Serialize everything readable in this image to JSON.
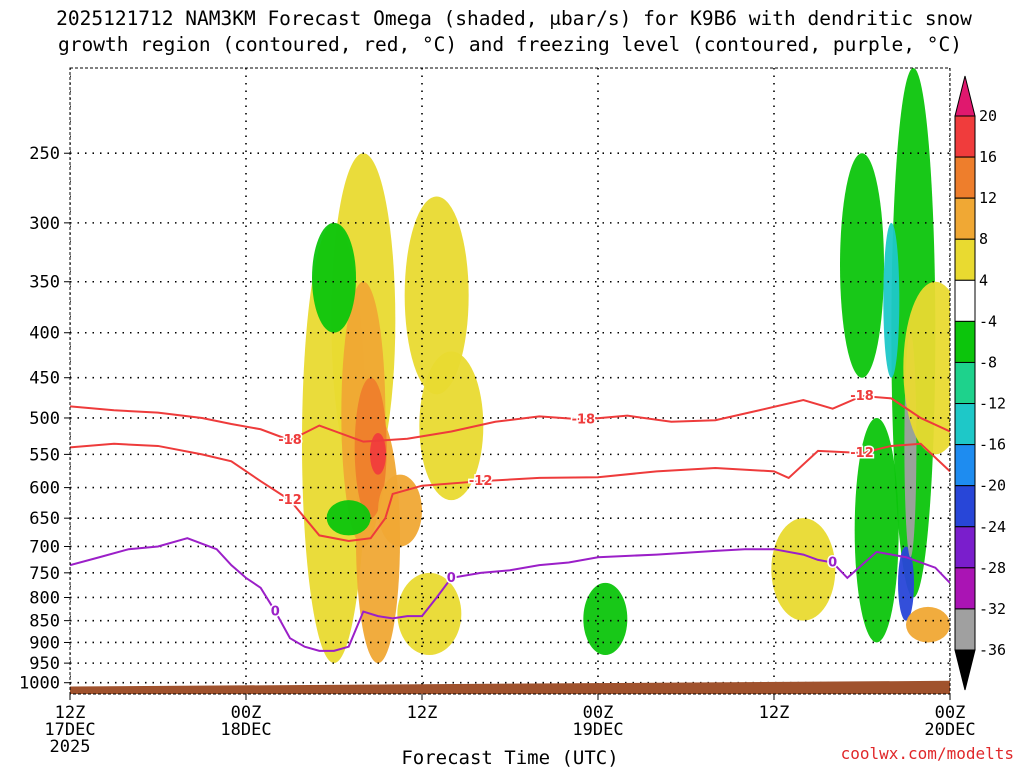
{
  "chart_data": {
    "type": "heatmap",
    "title": "2025121712 NAM3KM Forecast Omega (shaded, μbar/s) for K9B6 with dendritic snow growth region (contoured, red, °C) and freezing level (contoured, purple, °C)",
    "title_lines": [
      "2025121712 NAM3KM Forecast Omega (shaded, μbar/s) for K9B6 with dendritic snow",
      "growth region (contoured, red, °C) and freezing level (contoured, purple, °C)"
    ],
    "xlabel": "Forecast Time (UTC)",
    "ylabel": "",
    "y_scale": "log-pressure",
    "ylim": [
      1030,
      200
    ],
    "xlim_hours": [
      0,
      60
    ],
    "y_ticks": [
      250,
      300,
      350,
      400,
      450,
      500,
      550,
      600,
      650,
      700,
      750,
      800,
      850,
      900,
      950,
      1000
    ],
    "x_ticks": [
      {
        "h": 0,
        "lines": [
          "12Z",
          "17DEC",
          "2025"
        ]
      },
      {
        "h": 12,
        "lines": [
          "00Z",
          "18DEC"
        ]
      },
      {
        "h": 24,
        "lines": [
          "12Z"
        ]
      },
      {
        "h": 36,
        "lines": [
          "00Z",
          "19DEC"
        ]
      },
      {
        "h": 48,
        "lines": [
          "12Z"
        ]
      },
      {
        "h": 60,
        "lines": [
          "00Z",
          "20DEC"
        ]
      }
    ],
    "colorbar": {
      "labels": [
        "20",
        "16",
        "12",
        "8",
        "4",
        "-4",
        "-8",
        "-12",
        "-16",
        "-20",
        "-24",
        "-28",
        "-32",
        "-36"
      ],
      "bins": [
        {
          "range": [
            16,
            20
          ],
          "color": "#f03c3c"
        },
        {
          "range": [
            12,
            16
          ],
          "color": "#ee7e2c"
        },
        {
          "range": [
            8,
            12
          ],
          "color": "#f0a834"
        },
        {
          "range": [
            4,
            8
          ],
          "color": "#e9da30"
        },
        {
          "range": [
            -4,
            4
          ],
          "color": "#ffffff"
        },
        {
          "range": [
            -8,
            -4
          ],
          "color": "#0cc50c"
        },
        {
          "range": [
            -12,
            -8
          ],
          "color": "#1ed28c"
        },
        {
          "range": [
            -16,
            -12
          ],
          "color": "#1ec8c8"
        },
        {
          "range": [
            -20,
            -16
          ],
          "color": "#1e8cf0"
        },
        {
          "range": [
            -24,
            -20
          ],
          "color": "#2846d8"
        },
        {
          "range": [
            -28,
            -24
          ],
          "color": "#7a1ecc"
        },
        {
          "range": [
            -32,
            -28
          ],
          "color": "#aa14b4"
        },
        {
          "range": [
            -36,
            -32
          ],
          "color": "#a0a0a0"
        }
      ],
      "overflow_high_color": "#e0186e",
      "overflow_low_color": "#000000"
    },
    "omega_regions": [
      {
        "h": 20,
        "p": [
          250,
          600
        ],
        "value": 4
      },
      {
        "h": 18,
        "p": [
          300,
          950
        ],
        "value": 4
      },
      {
        "h": 20,
        "p": [
          350,
          700
        ],
        "value": 8
      },
      {
        "h": 21,
        "p": [
          500,
          950
        ],
        "value": 8
      },
      {
        "h": 20.5,
        "p": [
          450,
          650
        ],
        "value": 12
      },
      {
        "h": 21,
        "p": [
          520,
          580
        ],
        "value": 16
      },
      {
        "h": 26,
        "p": [
          420,
          620
        ],
        "value": 4
      },
      {
        "h": 25,
        "p": [
          280,
          470
        ],
        "value": 4
      },
      {
        "h": 24.5,
        "p": [
          750,
          930
        ],
        "value": 4
      },
      {
        "h": 22.5,
        "p": [
          580,
          700
        ],
        "value": 8
      },
      {
        "h": 18,
        "p": [
          300,
          400
        ],
        "value": -8
      },
      {
        "h": 19,
        "p": [
          620,
          680
        ],
        "value": -8
      },
      {
        "h": 54,
        "p": [
          250,
          450
        ],
        "value": -8
      },
      {
        "h": 55,
        "p": [
          500,
          900
        ],
        "value": -8
      },
      {
        "h": 57.5,
        "p": [
          200,
          800
        ],
        "value": -8
      },
      {
        "h": 56,
        "p": [
          300,
          450
        ],
        "value": -16
      },
      {
        "h": 57,
        "p": [
          700,
          850
        ],
        "value": -24
      },
      {
        "h": 57.3,
        "p": [
          400,
          720
        ],
        "value": -36
      },
      {
        "h": 59,
        "p": [
          350,
          550
        ],
        "value": 4
      },
      {
        "h": 58.5,
        "p": [
          820,
          900
        ],
        "value": 8
      },
      {
        "h": 36.5,
        "p": [
          770,
          930
        ],
        "value": -8
      },
      {
        "h": 50,
        "p": [
          650,
          850
        ],
        "value": 4
      }
    ],
    "series": [
      {
        "name": "dendritic growth -18°C",
        "color": "#ee3b3b",
        "label": "-18",
        "x": [
          0,
          3,
          6,
          9,
          11,
          13,
          15,
          17,
          20,
          23,
          26,
          29,
          32,
          35,
          38,
          41,
          44,
          47,
          50,
          52,
          54,
          56,
          58,
          60
        ],
        "y": [
          485,
          490,
          493,
          500,
          508,
          515,
          530,
          510,
          532,
          528,
          518,
          505,
          498,
          502,
          497,
          505,
          503,
          490,
          477,
          488,
          472,
          475,
          500,
          518
        ]
      },
      {
        "name": "dendritic growth -12°C",
        "color": "#ee3b3b",
        "label": "-12",
        "x": [
          0,
          3,
          6,
          9,
          11,
          13,
          15,
          17,
          19,
          20.5,
          21.5,
          22,
          24,
          28,
          32,
          36,
          40,
          44,
          48,
          49,
          51,
          54,
          56,
          58,
          60
        ],
        "y": [
          540,
          535,
          538,
          550,
          560,
          590,
          620,
          680,
          690,
          685,
          650,
          610,
          597,
          590,
          585,
          584,
          575,
          570,
          575,
          585,
          545,
          548,
          538,
          535,
          575
        ]
      },
      {
        "name": "freezing level 0°C",
        "color": "#9b1fc8",
        "label": "0",
        "x": [
          0,
          2,
          4,
          6,
          8,
          10,
          11,
          12,
          13,
          14,
          15,
          16,
          17,
          18,
          19,
          20,
          21,
          22,
          23,
          24,
          25,
          26,
          28,
          30,
          32,
          34,
          36,
          40,
          44,
          46,
          48,
          50,
          51,
          52,
          53,
          55,
          57,
          59,
          60
        ],
        "y": [
          735,
          720,
          705,
          700,
          685,
          705,
          735,
          760,
          780,
          830,
          890,
          910,
          920,
          920,
          910,
          830,
          840,
          845,
          840,
          840,
          800,
          760,
          750,
          745,
          735,
          730,
          720,
          715,
          708,
          705,
          705,
          715,
          725,
          730,
          760,
          710,
          720,
          740,
          770
        ]
      }
    ],
    "ground": {
      "color": "#a0522d",
      "p_top_start": 1010,
      "p_top_end": 995
    },
    "credit": "coolwx.com/modelts"
  }
}
